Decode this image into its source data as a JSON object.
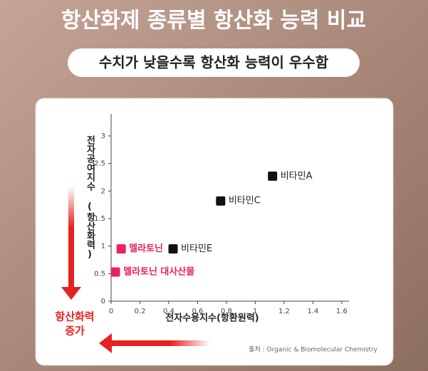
{
  "chart_data": {
    "type": "scatter",
    "title": "항산화제 종류별 항산화 능력 비교",
    "subtitle": "수치가 낮을수록 항산화 능력이 우수함",
    "x_label": "전자수용지수(항환원력)",
    "y_label": "전자공여지수 (항산화력)",
    "annotation": [
      "항산화력",
      "증가"
    ],
    "source": "출처 : Organic & Biomolecular Chemistry",
    "xlim": [
      0,
      1.65
    ],
    "ylim": [
      0,
      3.4
    ],
    "xticks": [
      0,
      0.2,
      0.4,
      0.6,
      0.8,
      1,
      1.2,
      1.4,
      1.6
    ],
    "yticks": [
      0,
      0.5,
      1,
      1.5,
      2,
      2.5,
      3
    ],
    "series": [
      {
        "name": "비타민A",
        "color": "#111111",
        "x": [
          1.12
        ],
        "values": [
          2.27
        ]
      },
      {
        "name": "비타민C",
        "color": "#111111",
        "x": [
          0.76
        ],
        "values": [
          1.82
        ]
      },
      {
        "name": "비타민E",
        "color": "#111111",
        "x": [
          0.43
        ],
        "values": [
          0.95
        ]
      },
      {
        "name": "멜라토닌",
        "color": "#e8245a",
        "x": [
          0.07
        ],
        "values": [
          0.95
        ]
      },
      {
        "name": "멜라토닌 대사산물",
        "color": "#e8245a",
        "x": [
          0.03
        ],
        "values": [
          0.53
        ]
      }
    ]
  }
}
